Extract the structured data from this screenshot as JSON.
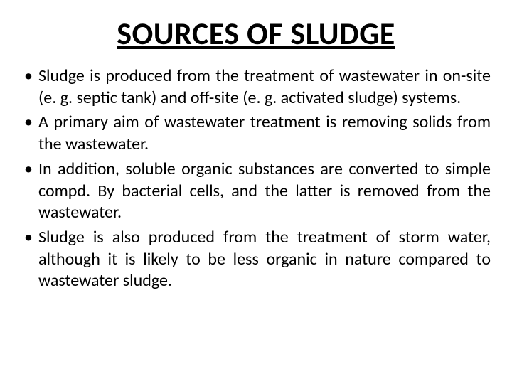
{
  "title": "SOURCES OF SLUDGE",
  "bullets": [
    "Sludge is produced from the treatment of wastewater in on-site (e. g. septic tank) and off-site (e. g. activated sludge) systems.",
    " A primary aim of wastewater treatment is removing solids from the wastewater.",
    "In addition, soluble organic substances are converted to simple compd. By bacterial cells, and the latter is removed from the wastewater.",
    "Sludge is also produced from the treatment of storm water, although it is likely to be less organic in nature compared to wastewater sludge."
  ],
  "colors": {
    "background": "#ffffff",
    "text": "#000000"
  },
  "typography": {
    "title_fontsize": 44,
    "title_weight": "bold",
    "body_fontsize": 24,
    "font_family": "Calibri"
  }
}
